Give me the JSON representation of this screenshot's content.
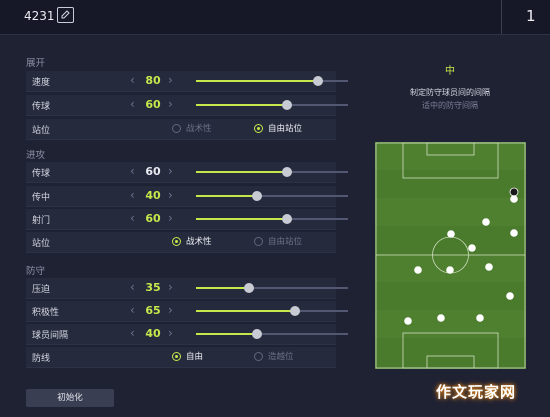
{
  "header": {
    "tactic_name": "4231",
    "slot_number": "1"
  },
  "sections": {
    "build_up": "展开",
    "attack": "进攻",
    "defence": "防守"
  },
  "rows": {
    "build_speed": {
      "label": "速度",
      "value": "80",
      "fraction": 0.8
    },
    "build_passing": {
      "label": "传球",
      "value": "60",
      "fraction": 0.6
    },
    "build_position": {
      "label": "站位",
      "option_a": "战术性",
      "option_b": "自由站位",
      "selected": "option_b"
    },
    "att_passing": {
      "label": "传球",
      "value": "60",
      "fraction": 0.6
    },
    "att_crossing": {
      "label": "传中",
      "value": "40",
      "fraction": 0.4
    },
    "att_shooting": {
      "label": "射门",
      "value": "60",
      "fraction": 0.6
    },
    "att_position": {
      "label": "站位",
      "option_a": "战术性",
      "option_b": "自由站位",
      "selected": "option_a"
    },
    "def_pressure": {
      "label": "压迫",
      "value": "35",
      "fraction": 0.35
    },
    "def_aggression": {
      "label": "积极性",
      "value": "65",
      "fraction": 0.65
    },
    "def_width": {
      "label": "球员间隔",
      "value": "40",
      "fraction": 0.4
    },
    "def_line": {
      "label": "防线",
      "option_a": "自由",
      "option_b": "造越位",
      "selected": "option_a"
    }
  },
  "reset_label": "初始化",
  "panel": {
    "title": "中",
    "description": "制定防守球员间的间隔",
    "subtitle": "适中的防守间隔"
  },
  "colors": {
    "accent": "#c6e84a",
    "background": "#1f2233",
    "pitch": "#4a7a2c"
  },
  "watermark": "作文玩家网"
}
